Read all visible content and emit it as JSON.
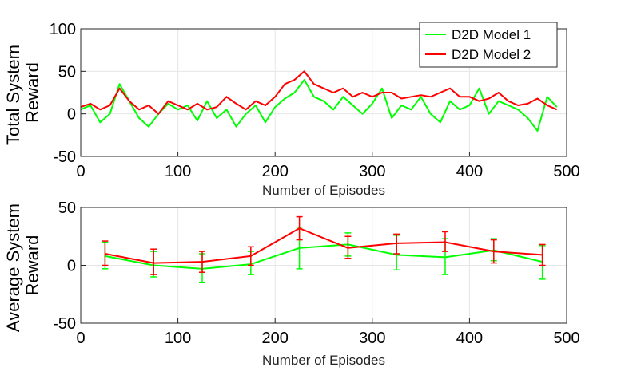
{
  "chart_data": [
    {
      "type": "line",
      "title": "",
      "xlabel": "Number of Episodes",
      "ylabel": [
        "Total System",
        "Reward"
      ],
      "xlim": [
        0,
        500
      ],
      "ylim": [
        -50,
        100
      ],
      "xticks": [
        0,
        100,
        200,
        300,
        400,
        500
      ],
      "yticks": [
        -50,
        0,
        50,
        100
      ],
      "grid": true,
      "legend": {
        "placement": "top-right",
        "entries": [
          "D2D Model 1",
          "D2D Model 2"
        ]
      },
      "series": [
        {
          "name": "D2D Model 1",
          "color": "#00ff00",
          "x": [
            0,
            10,
            20,
            30,
            40,
            50,
            60,
            70,
            80,
            90,
            100,
            110,
            120,
            130,
            140,
            150,
            160,
            170,
            180,
            190,
            200,
            210,
            220,
            230,
            240,
            250,
            260,
            270,
            280,
            290,
            300,
            310,
            320,
            330,
            340,
            350,
            360,
            370,
            380,
            390,
            400,
            410,
            420,
            430,
            440,
            450,
            460,
            470,
            480,
            490
          ],
          "values": [
            5,
            10,
            -10,
            0,
            35,
            15,
            -5,
            -15,
            0,
            12,
            5,
            10,
            -8,
            15,
            -5,
            5,
            -15,
            0,
            10,
            -10,
            8,
            18,
            25,
            40,
            20,
            15,
            5,
            20,
            10,
            0,
            12,
            30,
            -5,
            10,
            5,
            20,
            0,
            -10,
            15,
            5,
            10,
            30,
            0,
            15,
            10,
            5,
            -5,
            -20,
            20,
            8
          ]
        },
        {
          "name": "D2D Model 2",
          "color": "#ff0000",
          "x": [
            0,
            10,
            20,
            30,
            40,
            50,
            60,
            70,
            80,
            90,
            100,
            110,
            120,
            130,
            140,
            150,
            160,
            170,
            180,
            190,
            200,
            210,
            220,
            230,
            240,
            250,
            260,
            270,
            280,
            290,
            300,
            310,
            320,
            330,
            340,
            350,
            360,
            370,
            380,
            390,
            400,
            410,
            420,
            430,
            440,
            450,
            460,
            470,
            480,
            490
          ],
          "values": [
            8,
            12,
            5,
            10,
            30,
            15,
            5,
            10,
            0,
            15,
            10,
            5,
            12,
            5,
            8,
            20,
            12,
            5,
            15,
            10,
            20,
            35,
            40,
            50,
            35,
            30,
            25,
            30,
            20,
            25,
            20,
            25,
            25,
            18,
            20,
            22,
            20,
            25,
            30,
            20,
            20,
            15,
            18,
            25,
            15,
            10,
            12,
            18,
            10,
            5
          ]
        }
      ]
    },
    {
      "type": "line",
      "title": "",
      "xlabel": "Number of Episodes",
      "ylabel": [
        "Average System",
        "Reward"
      ],
      "xlim": [
        0,
        500
      ],
      "ylim": [
        -50,
        50
      ],
      "xticks": [
        0,
        100,
        200,
        300,
        400,
        500
      ],
      "yticks": [
        -50,
        0,
        50
      ],
      "grid": true,
      "error_bars": true,
      "series": [
        {
          "name": "D2D Model 1",
          "color": "#00ff00",
          "x": [
            25,
            75,
            125,
            175,
            225,
            275,
            325,
            375,
            425,
            475
          ],
          "values": [
            8,
            0,
            -3,
            1,
            15,
            18,
            9,
            7,
            13,
            3
          ],
          "lower": [
            -3,
            -10,
            -15,
            -8,
            -3,
            8,
            -4,
            -8,
            4,
            -12
          ],
          "upper": [
            20,
            12,
            10,
            12,
            33,
            28,
            26,
            23,
            23,
            17
          ]
        },
        {
          "name": "D2D Model 2",
          "color": "#ff0000",
          "x": [
            25,
            75,
            125,
            175,
            225,
            275,
            325,
            375,
            425,
            475
          ],
          "values": [
            10,
            2,
            3,
            8,
            32,
            15,
            19,
            20,
            12,
            9
          ],
          "lower": [
            0,
            -8,
            -6,
            0,
            22,
            6,
            10,
            12,
            2,
            0
          ],
          "upper": [
            21,
            14,
            12,
            16,
            42,
            25,
            27,
            29,
            22,
            18
          ]
        }
      ]
    }
  ]
}
